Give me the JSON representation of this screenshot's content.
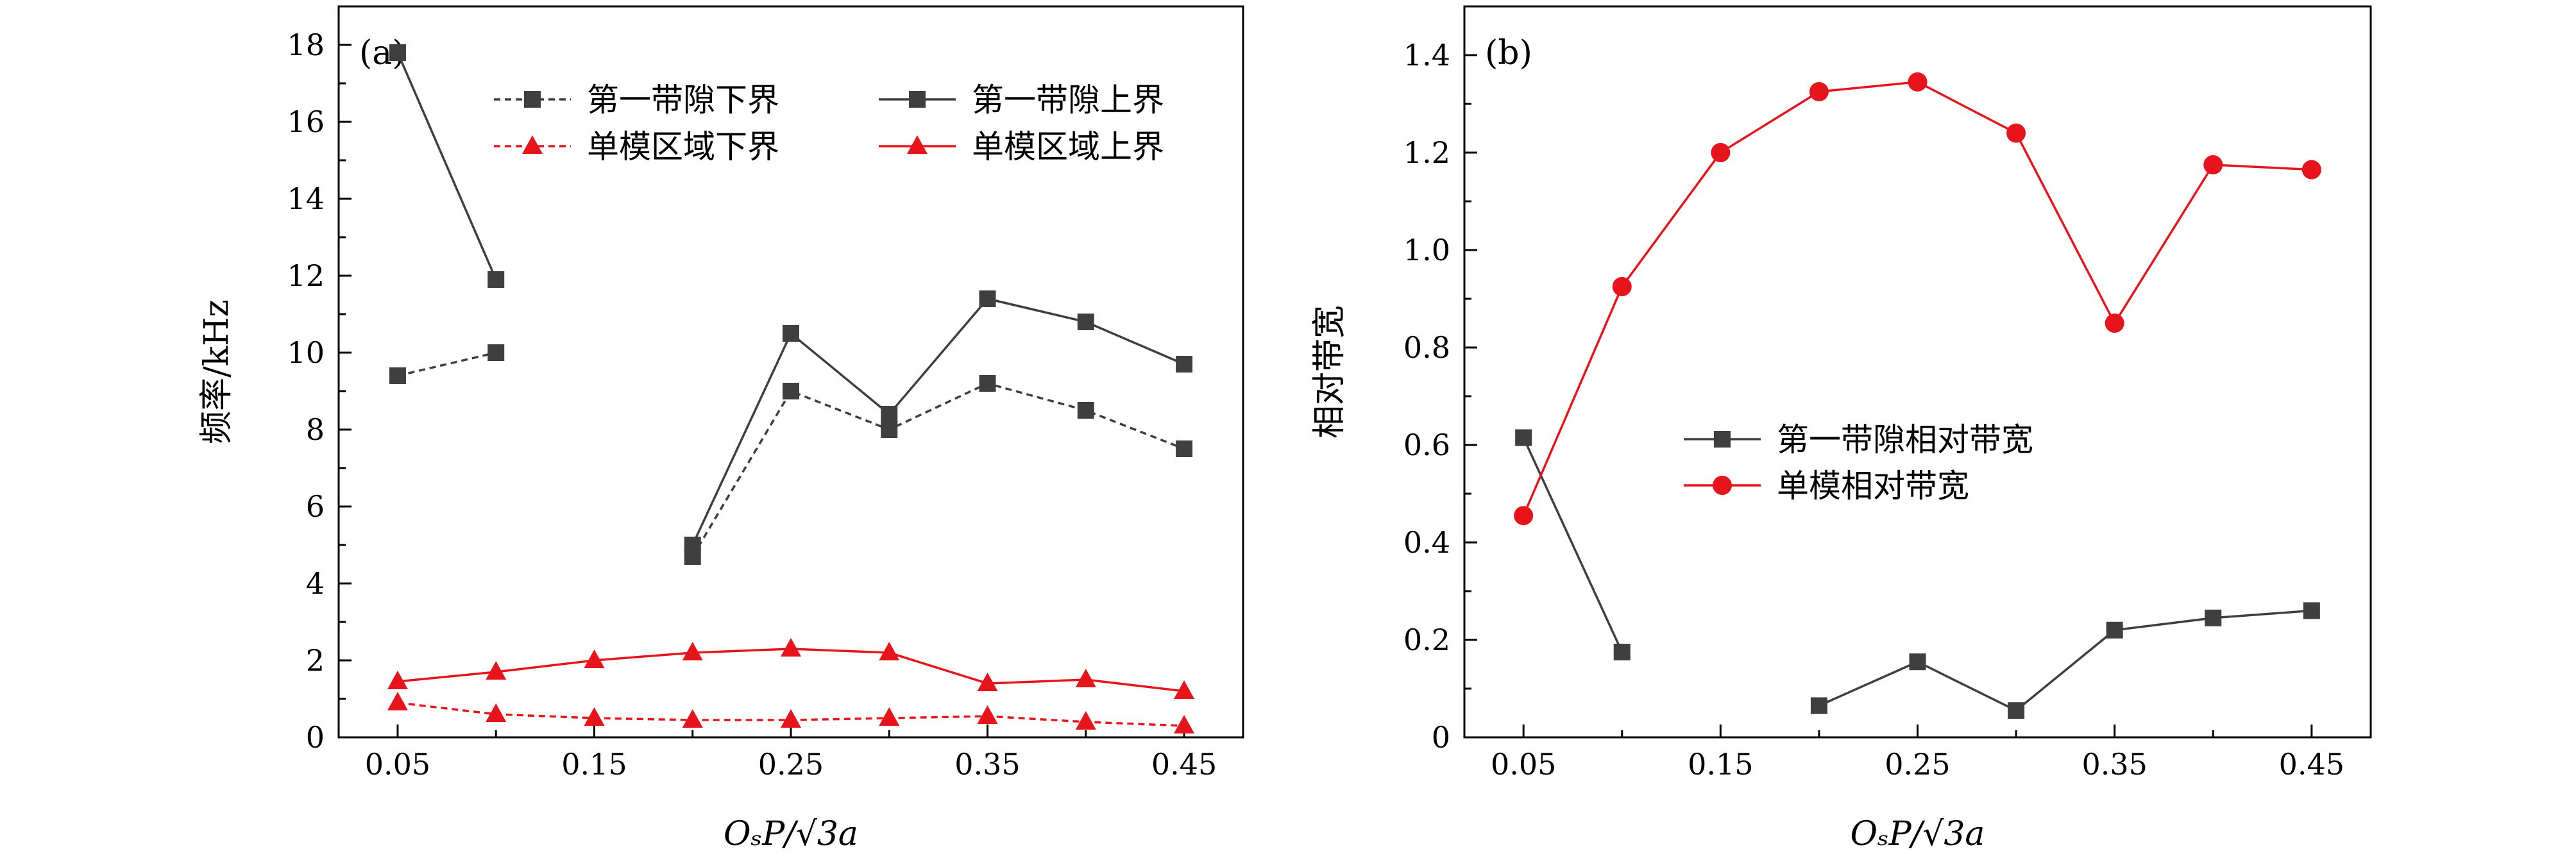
{
  "chart_data": [
    {
      "panel": "(a)",
      "type": "line",
      "xlabel": "OₛP/√3a",
      "ylabel": "频率/kHz",
      "x_ticks": [
        "0.05",
        "0.15",
        "0.25",
        "0.35",
        "0.45"
      ],
      "y_ticks": [
        "0",
        "2",
        "4",
        "6",
        "8",
        "10",
        "12",
        "14",
        "16",
        "18"
      ],
      "xlim": [
        0.02,
        0.48
      ],
      "ylim": [
        0,
        19
      ],
      "series": [
        {
          "name": "第一带隙下界",
          "marker": "square",
          "style": "dashed",
          "color": "#3f3f3f",
          "segments": [
            {
              "x": [
                0.05,
                0.1
              ],
              "y": [
                9.4,
                10.0
              ]
            },
            {
              "x": [
                0.2,
                0.25,
                0.3,
                0.35,
                0.4,
                0.45
              ],
              "y": [
                4.7,
                9.0,
                8.0,
                9.2,
                8.5,
                7.5
              ]
            }
          ]
        },
        {
          "name": "第一带隙上界",
          "marker": "square",
          "style": "solid",
          "color": "#3f3f3f",
          "segments": [
            {
              "x": [
                0.05,
                0.1
              ],
              "y": [
                17.8,
                11.9
              ]
            },
            {
              "x": [
                0.2,
                0.25,
                0.3,
                0.35,
                0.4,
                0.45
              ],
              "y": [
                5.0,
                10.5,
                8.4,
                11.4,
                10.8,
                9.7
              ]
            }
          ]
        },
        {
          "name": "单模区域下界",
          "marker": "triangle",
          "style": "dashed",
          "color": "#e8141b",
          "segments": [
            {
              "x": [
                0.05,
                0.1,
                0.15,
                0.2,
                0.25,
                0.3,
                0.35,
                0.4,
                0.45
              ],
              "y": [
                0.9,
                0.6,
                0.5,
                0.45,
                0.45,
                0.5,
                0.55,
                0.4,
                0.3
              ]
            }
          ]
        },
        {
          "name": "单模区域上界",
          "marker": "triangle",
          "style": "solid",
          "color": "#e8141b",
          "segments": [
            {
              "x": [
                0.05,
                0.1,
                0.15,
                0.2,
                0.25,
                0.3,
                0.35,
                0.4,
                0.45
              ],
              "y": [
                1.45,
                1.7,
                2.0,
                2.2,
                2.3,
                2.2,
                1.4,
                1.5,
                1.2
              ]
            }
          ]
        }
      ],
      "legend_placement": "top"
    },
    {
      "panel": "(b)",
      "type": "line",
      "xlabel": "OₛP/√3a",
      "ylabel": "相对带宽",
      "x_ticks": [
        "0.05",
        "0.15",
        "0.25",
        "0.35",
        "0.45"
      ],
      "y_ticks": [
        "0",
        "0.2",
        "0.4",
        "0.6",
        "0.8",
        "1.0",
        "1.2",
        "1.4"
      ],
      "xlim": [
        0.02,
        0.48
      ],
      "ylim": [
        0,
        1.5
      ],
      "series": [
        {
          "name": "第一带隙相对带宽",
          "marker": "square",
          "style": "solid",
          "color": "#3f3f3f",
          "segments": [
            {
              "x": [
                0.05,
                0.1
              ],
              "y": [
                0.615,
                0.175
              ]
            },
            {
              "x": [
                0.2,
                0.25,
                0.3,
                0.35,
                0.4,
                0.45
              ],
              "y": [
                0.065,
                0.155,
                0.055,
                0.22,
                0.245,
                0.26
              ]
            }
          ]
        },
        {
          "name": "单模相对带宽",
          "marker": "circle",
          "style": "solid",
          "color": "#e8141b",
          "segments": [
            {
              "x": [
                0.05,
                0.1,
                0.15,
                0.2,
                0.25,
                0.3,
                0.35,
                0.4,
                0.45
              ],
              "y": [
                0.455,
                0.925,
                1.2,
                1.325,
                1.345,
                1.24,
                0.85,
                1.175,
                1.165
              ]
            }
          ]
        }
      ],
      "legend_placement": "center"
    }
  ]
}
